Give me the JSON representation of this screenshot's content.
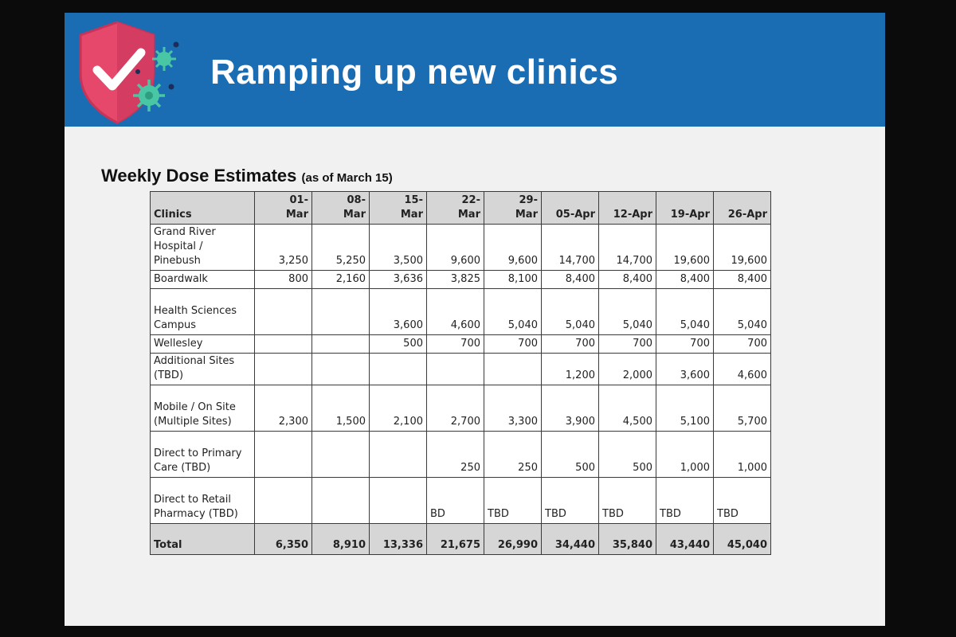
{
  "slide": {
    "title": "Ramping up new clinics",
    "subtitle": "Weekly Dose Estimates",
    "subtitle_note": "(as of March 15)"
  },
  "colors": {
    "header_bg": "#1a6cb3",
    "shield": "#e5486a",
    "virus": "#49c6a3"
  },
  "icons": [
    "shield-check-icon",
    "virus-icon"
  ],
  "table": {
    "corner_label": "Clinics",
    "columns": [
      "01-\nMar",
      "08-\nMar",
      "15-\nMar",
      "22-\nMar",
      "29-\nMar",
      "05-Apr",
      "12-Apr",
      "19-Apr",
      "26-Apr"
    ],
    "rows": [
      {
        "clinic": "Grand River Hospital / Pinebush",
        "values": [
          "3,250",
          "5,250",
          "3,500",
          "9,600",
          "9,600",
          "14,700",
          "14,700",
          "19,600",
          "19,600"
        ]
      },
      {
        "clinic": "Boardwalk",
        "values": [
          "800",
          "2,160",
          "3,636",
          "3,825",
          "8,100",
          "8,400",
          "8,400",
          "8,400",
          "8,400"
        ]
      },
      {
        "clinic": "Health Sciences Campus",
        "values": [
          "",
          "",
          "3,600",
          "4,600",
          "5,040",
          "5,040",
          "5,040",
          "5,040",
          "5,040"
        ]
      },
      {
        "clinic": "Wellesley",
        "values": [
          "",
          "",
          "500",
          "700",
          "700",
          "700",
          "700",
          "700",
          "700"
        ]
      },
      {
        "clinic": "Additional Sites (TBD)",
        "values": [
          "",
          "",
          "",
          "",
          "",
          "1,200",
          "2,000",
          "3,600",
          "4,600"
        ]
      },
      {
        "clinic": "Mobile / On Site (Multiple Sites)",
        "values": [
          "2,300",
          "1,500",
          "2,100",
          "2,700",
          "3,300",
          "3,900",
          "4,500",
          "5,100",
          "5,700"
        ]
      },
      {
        "clinic": "Direct to Primary Care (TBD)",
        "values": [
          "",
          "",
          "",
          "250",
          "250",
          "500",
          "500",
          "1,000",
          "1,000"
        ]
      },
      {
        "clinic": "Direct to Retail Pharmacy (TBD)",
        "values": [
          "",
          "",
          "",
          "BD",
          "TBD",
          "TBD",
          "TBD",
          "TBD",
          "TBD"
        ]
      }
    ],
    "total": {
      "label": "Total",
      "values": [
        "6,350",
        "8,910",
        "13,336",
        "21,675",
        "26,990",
        "34,440",
        "35,840",
        "43,440",
        "45,040"
      ]
    }
  }
}
